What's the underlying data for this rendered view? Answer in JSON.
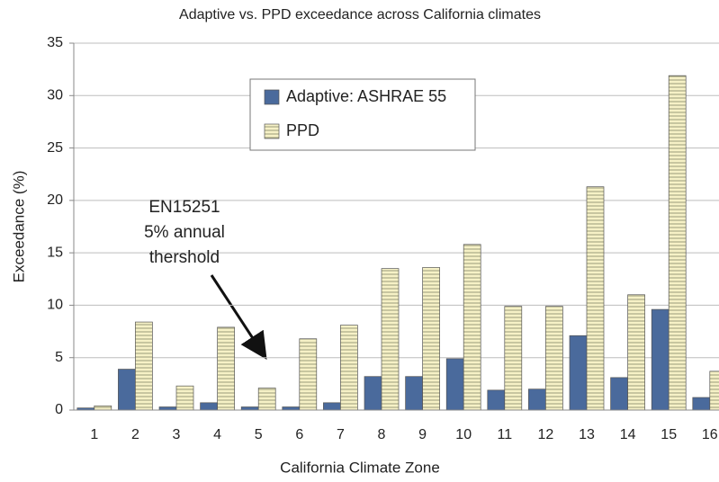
{
  "chart_data": {
    "type": "bar",
    "title": "Adaptive vs. PPD exceedance across California climates",
    "x_label": "California Climate Zone",
    "y_label": "Exceedance (%)",
    "annotation": [
      "EN15251",
      "5% annual",
      "thershold"
    ],
    "categories": [
      "1",
      "2",
      "3",
      "4",
      "5",
      "6",
      "7",
      "8",
      "9",
      "10",
      "11",
      "12",
      "13",
      "14",
      "15",
      "16"
    ],
    "series": [
      {
        "name": "Adaptive: ASHRAE 55",
        "color": "#4a6a9c",
        "values": [
          0.2,
          3.9,
          0.3,
          0.7,
          0.3,
          0.3,
          0.7,
          3.2,
          3.2,
          4.9,
          1.9,
          2.0,
          7.1,
          3.1,
          9.6,
          1.2
        ]
      },
      {
        "name": "PPD",
        "color": "#f6f1c6",
        "values": [
          0.4,
          8.4,
          2.3,
          7.9,
          2.1,
          6.8,
          8.1,
          13.5,
          13.6,
          15.8,
          9.9,
          9.9,
          21.3,
          11.0,
          31.9,
          3.7
        ]
      }
    ],
    "ylim": [
      0,
      35
    ],
    "yticks": [
      0,
      5,
      10,
      15,
      20,
      25,
      30,
      35
    ],
    "grid": true
  }
}
